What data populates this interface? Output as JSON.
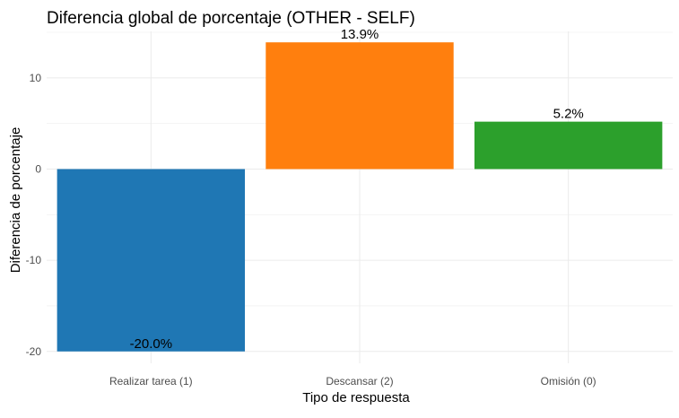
{
  "chart_data": {
    "type": "bar",
    "title": "Diferencia global de porcentaje (OTHER - SELF)",
    "xlabel": "Tipo de respuesta",
    "ylabel": "Diferencia de porcentaje",
    "categories": [
      "Realizar tarea (1)",
      "Descansar (2)",
      "Omisión (0)"
    ],
    "values": [
      -20.0,
      13.9,
      5.2
    ],
    "data_labels": [
      "-20.0%",
      "13.9%",
      "5.2%"
    ],
    "colors": [
      "#1f77b4",
      "#ff7f0e",
      "#2ca02c"
    ],
    "ylim": [
      -21.3,
      15.1
    ],
    "yticks": [
      -20,
      -10,
      0,
      10
    ],
    "ytick_labels": [
      "-20",
      "-10",
      "0",
      "10"
    ],
    "grid": true,
    "legend": "none"
  }
}
